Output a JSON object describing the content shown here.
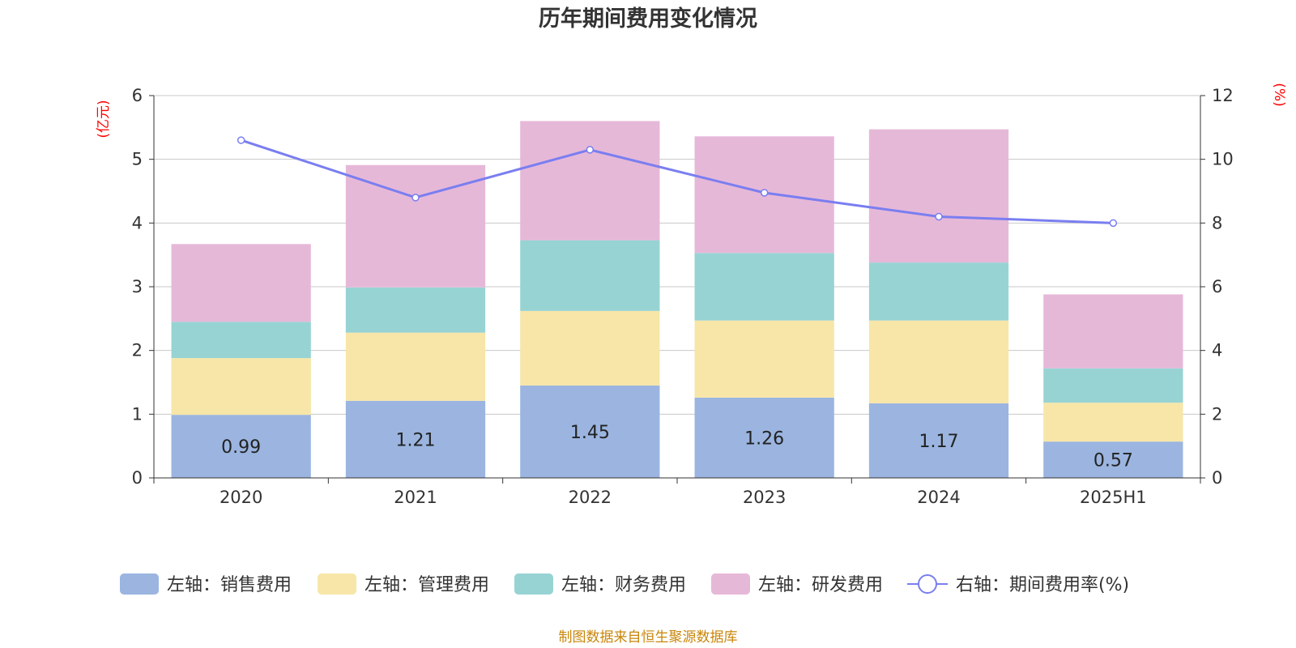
{
  "chart_data": {
    "type": "bar",
    "title": "历年期间费用变化情况",
    "categories": [
      "2020",
      "2021",
      "2022",
      "2023",
      "2024",
      "2025H1"
    ],
    "series": [
      {
        "name": "左轴：销售费用",
        "axis": "left",
        "kind": "stacked-bar",
        "color": "#9bb5e0",
        "values": [
          0.99,
          1.21,
          1.45,
          1.26,
          1.17,
          0.57
        ],
        "labels": [
          "0.99",
          "1.21",
          "1.45",
          "1.26",
          "1.17",
          "0.57"
        ]
      },
      {
        "name": "左轴：管理费用",
        "axis": "left",
        "kind": "stacked-bar",
        "color": "#f7e6a8",
        "values": [
          0.89,
          1.07,
          1.17,
          1.21,
          1.3,
          0.61
        ]
      },
      {
        "name": "左轴：财务费用",
        "axis": "left",
        "kind": "stacked-bar",
        "color": "#98d3d4",
        "values": [
          0.57,
          0.71,
          1.11,
          1.06,
          0.91,
          0.54
        ]
      },
      {
        "name": "左轴：研发费用",
        "axis": "left",
        "kind": "stacked-bar",
        "color": "#e6b8d8",
        "values": [
          1.22,
          1.92,
          1.87,
          1.83,
          2.09,
          1.16
        ]
      },
      {
        "name": "右轴：期间费用率(%)",
        "axis": "right",
        "kind": "line",
        "color": "#7a7ef0",
        "values": [
          10.6,
          8.8,
          10.3,
          8.95,
          8.2,
          8.0
        ]
      }
    ],
    "left_axis": {
      "unit": "(亿元)",
      "ylim": [
        0,
        6
      ],
      "ticks": [
        "0",
        "1",
        "2",
        "3",
        "4",
        "5",
        "6"
      ]
    },
    "right_axis": {
      "unit": "(%)",
      "ylim": [
        0,
        12
      ],
      "ticks": [
        "0",
        "2",
        "4",
        "6",
        "8",
        "10",
        "12"
      ]
    },
    "grid": true,
    "legend_position": "bottom"
  },
  "source_note": "制图数据来自恒生聚源数据库"
}
